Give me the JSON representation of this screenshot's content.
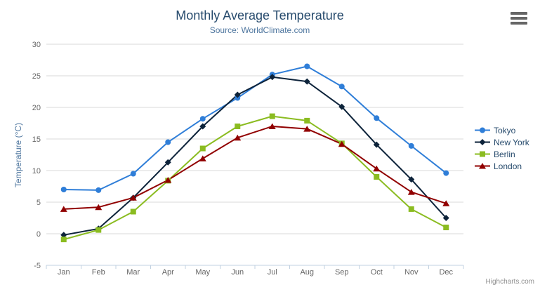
{
  "credits_label": "Highcharts.com",
  "chart_data": {
    "type": "line",
    "title": "Monthly Average Temperature",
    "subtitle": "Source: WorldClimate.com",
    "xlabel": "",
    "ylabel": "Temperature (°C)",
    "ylim": [
      -5,
      30
    ],
    "ytick_interval": 5,
    "yticks": [
      -5,
      0,
      5,
      10,
      15,
      20,
      25,
      30
    ],
    "grid": true,
    "legend_position": "right",
    "categories": [
      "Jan",
      "Feb",
      "Mar",
      "Apr",
      "May",
      "Jun",
      "Jul",
      "Aug",
      "Sep",
      "Oct",
      "Nov",
      "Dec"
    ],
    "series": [
      {
        "name": "Tokyo",
        "color": "#2f7ed8",
        "marker": "circle",
        "values": [
          7.0,
          6.9,
          9.5,
          14.5,
          18.2,
          21.5,
          25.2,
          26.5,
          23.3,
          18.3,
          13.9,
          9.6
        ]
      },
      {
        "name": "New York",
        "color": "#0d233a",
        "marker": "diamond",
        "values": [
          -0.2,
          0.8,
          5.7,
          11.3,
          17.0,
          22.0,
          24.8,
          24.1,
          20.1,
          14.1,
          8.6,
          2.5
        ]
      },
      {
        "name": "Berlin",
        "color": "#8bbc21",
        "marker": "square",
        "values": [
          -0.9,
          0.6,
          3.5,
          8.4,
          13.5,
          17.0,
          18.6,
          17.9,
          14.3,
          9.0,
          3.9,
          1.0
        ]
      },
      {
        "name": "London",
        "color": "#910000",
        "marker": "triangle",
        "values": [
          3.9,
          4.2,
          5.7,
          8.5,
          11.9,
          15.2,
          17.0,
          16.6,
          14.2,
          10.3,
          6.6,
          4.8
        ]
      }
    ],
    "palette": {
      "title_color": "#274b6d",
      "subtitle_color": "#4d759e",
      "axis_title_color": "#4d759e",
      "tick_label_color": "#666666",
      "grid_color": "#d8d8d8",
      "axis_line_color": "#c0d0e0",
      "legend_text_color": "#274b6d",
      "credits_color": "#909090",
      "menu_icon_color": "#666666"
    },
    "icons": {
      "context_menu": "hamburger"
    }
  }
}
